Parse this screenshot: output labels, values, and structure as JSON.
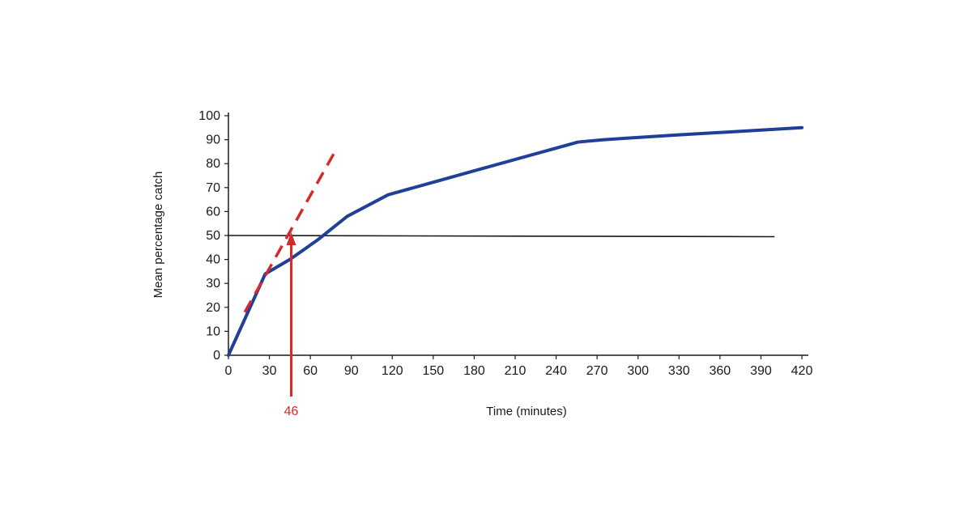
{
  "chart_data": {
    "type": "line",
    "title": "",
    "xlabel": "Time (minutes)",
    "ylabel": "Mean percentage catch",
    "xlim": [
      0,
      420
    ],
    "ylim": [
      0,
      100
    ],
    "x_ticks": [
      0,
      30,
      60,
      90,
      120,
      150,
      180,
      210,
      240,
      270,
      300,
      330,
      360,
      390,
      420
    ],
    "y_ticks": [
      0,
      10,
      20,
      30,
      40,
      50,
      60,
      70,
      80,
      90,
      100
    ],
    "grid": false,
    "legend": "none",
    "series": [
      {
        "style": "solid",
        "color": "#1f3f99",
        "points": [
          [
            0,
            0
          ],
          [
            27,
            34
          ],
          [
            45,
            40
          ],
          [
            65,
            48
          ],
          [
            87,
            58
          ],
          [
            117,
            67
          ],
          [
            180,
            77
          ],
          [
            256,
            89
          ],
          [
            275,
            90
          ],
          [
            330,
            92
          ],
          [
            420,
            95
          ]
        ]
      },
      {
        "style": "dashed",
        "color": "#d42a2a",
        "points": [
          [
            12,
            18
          ],
          [
            78,
            85
          ]
        ]
      }
    ],
    "reference_line": {
      "y": 50,
      "x_start": 0,
      "x_end": 400,
      "color": "#1a1a1a"
    },
    "annotation": {
      "x": 46,
      "y": 50,
      "label": "46",
      "color": "#d42a2a"
    }
  }
}
